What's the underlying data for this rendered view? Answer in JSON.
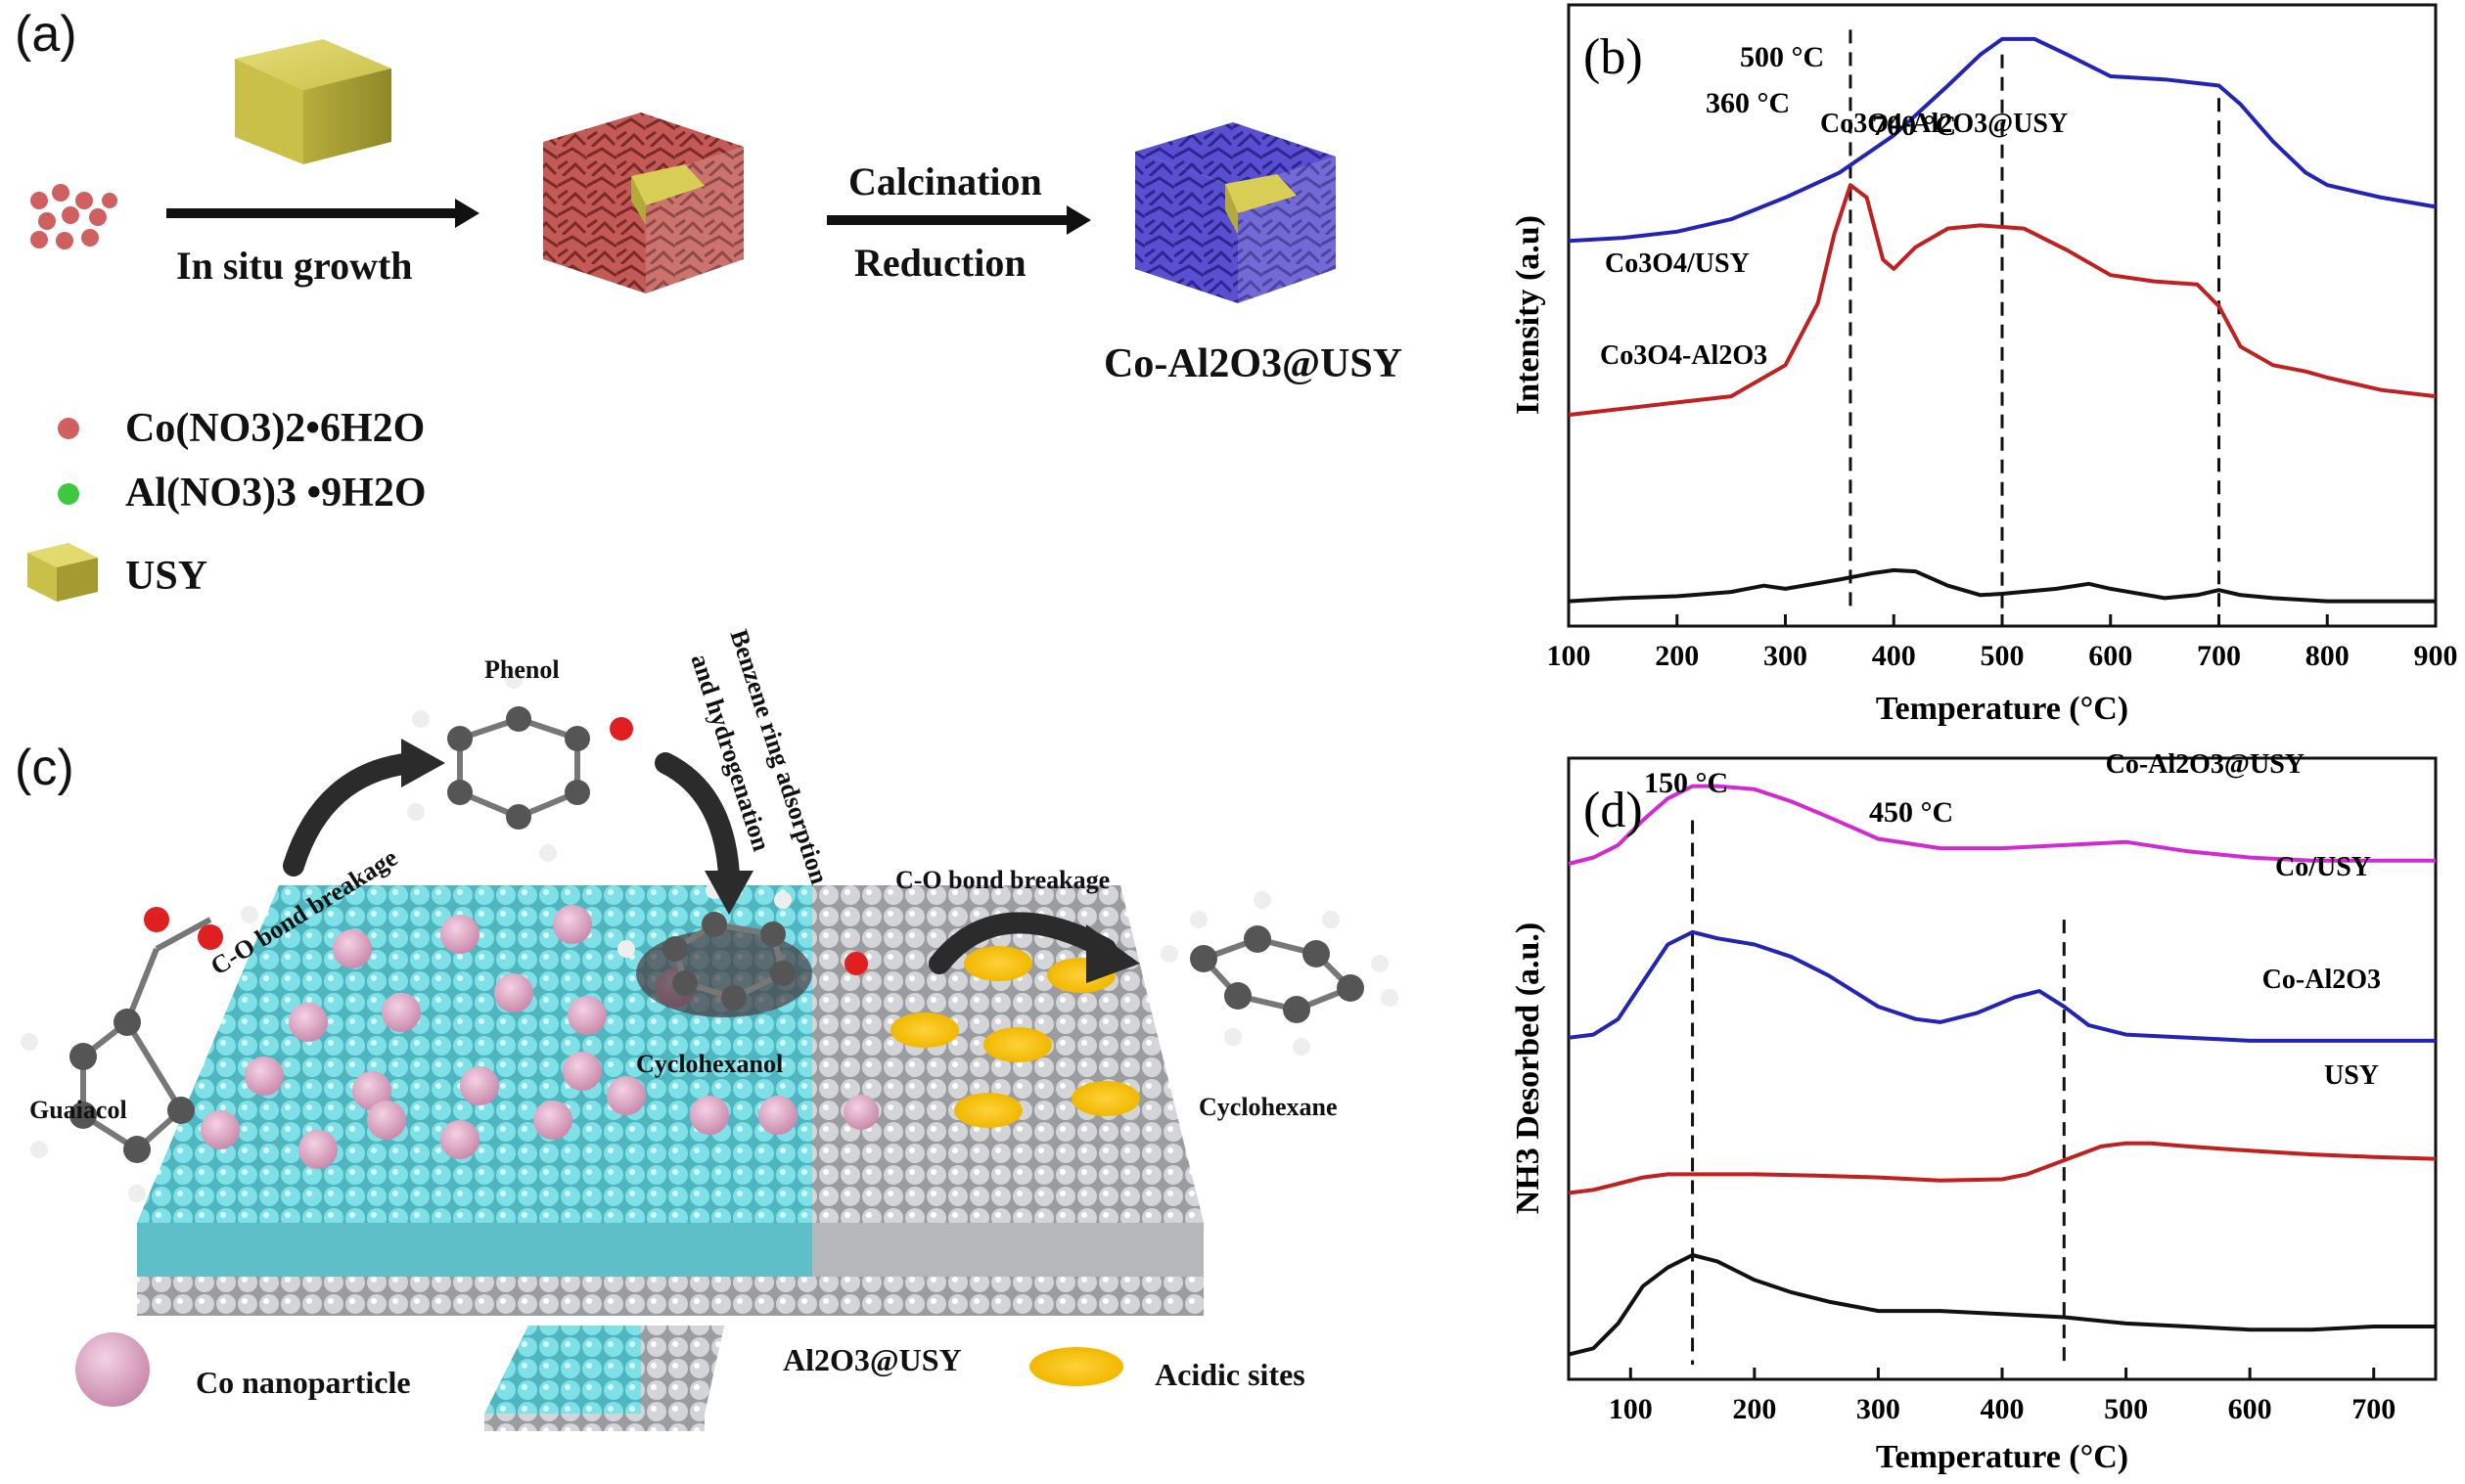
{
  "panel_a": {
    "label": "(a)",
    "arrow1_label": "In situ growth",
    "arrow2_top": "Calcination",
    "arrow2_bottom": "Reduction",
    "product_label": "Co-Al2O3@USY",
    "legend": [
      "Co(NO3)2•6H2O",
      "Al(NO3)3 •9H2O",
      "USY"
    ],
    "colors": {
      "co_precursor": "#d06060",
      "al_precursor": "#3ec83e",
      "usy": "#c9c04a",
      "co_shell": "#c0504d",
      "reduced_shell": "#5a4fd0"
    }
  },
  "panel_c": {
    "label": "(c)",
    "phenol": "Phenol",
    "co_break_left": "C-O bond breakage",
    "benzene_line1": "Benzene ring adsorption",
    "benzene_line2": "and hydrogenation",
    "co_break_right": "C-O bond breakage",
    "guaiacol": "Guaiacol",
    "cyclohexanol": "Cyclohexanol",
    "cyclohexane": "Cyclohexane",
    "legend_co": "Co nanoparticle",
    "legend_support": "Al2O3@USY",
    "legend_acid": "Acidic sites",
    "colors": {
      "al2o3": "#6fd3dc",
      "usy": "#c8cacc",
      "co": "#d99cbd",
      "acid": "#f4c21c"
    }
  },
  "chart_data": [
    {
      "panel": "(b)",
      "type": "line",
      "xlabel": "Temperature (°C)",
      "ylabel": "Intensity (a.u)",
      "xlim": [
        100,
        900
      ],
      "xticks": [
        100,
        200,
        300,
        400,
        500,
        600,
        700,
        800,
        900
      ],
      "y_ticks_shown": false,
      "annotations": [
        "360 °C",
        "500 °C",
        "700 °C"
      ],
      "vlines": [
        360,
        500,
        700
      ],
      "series": [
        {
          "name": "Co3O4-Al2O3@USY",
          "color": "#2323b5",
          "x": [
            100,
            150,
            200,
            250,
            300,
            350,
            400,
            450,
            480,
            500,
            530,
            560,
            600,
            650,
            700,
            720,
            750,
            780,
            800,
            850,
            900
          ],
          "y": [
            0.62,
            0.625,
            0.635,
            0.655,
            0.69,
            0.73,
            0.79,
            0.87,
            0.92,
            0.945,
            0.945,
            0.92,
            0.885,
            0.88,
            0.87,
            0.84,
            0.78,
            0.73,
            0.71,
            0.69,
            0.675
          ]
        },
        {
          "name": "Co3O4/USY",
          "color": "#c02020",
          "x": [
            100,
            150,
            200,
            250,
            300,
            330,
            345,
            360,
            375,
            390,
            400,
            420,
            450,
            480,
            520,
            560,
            600,
            640,
            680,
            700,
            720,
            750,
            780,
            800,
            850,
            900
          ],
          "y": [
            0.34,
            0.35,
            0.36,
            0.37,
            0.42,
            0.52,
            0.63,
            0.71,
            0.69,
            0.59,
            0.575,
            0.61,
            0.64,
            0.645,
            0.64,
            0.605,
            0.565,
            0.555,
            0.55,
            0.515,
            0.45,
            0.42,
            0.41,
            0.4,
            0.38,
            0.37
          ]
        },
        {
          "name": "Co3O4-Al2O3",
          "color": "#111111",
          "x": [
            100,
            150,
            200,
            250,
            280,
            300,
            350,
            380,
            400,
            420,
            450,
            480,
            500,
            550,
            580,
            600,
            650,
            680,
            700,
            720,
            750,
            800,
            850,
            900
          ],
          "y": [
            0.04,
            0.045,
            0.048,
            0.055,
            0.065,
            0.06,
            0.075,
            0.085,
            0.09,
            0.088,
            0.065,
            0.05,
            0.052,
            0.06,
            0.068,
            0.06,
            0.045,
            0.05,
            0.058,
            0.05,
            0.045,
            0.04,
            0.04,
            0.04
          ]
        }
      ]
    },
    {
      "panel": "(d)",
      "type": "line",
      "xlabel": "Temperature (°C)",
      "ylabel": "NH3 Desorbed (a.u.)",
      "xlim": [
        50,
        750
      ],
      "xticks": [
        100,
        200,
        300,
        400,
        500,
        600,
        700
      ],
      "y_ticks_shown": false,
      "annotations": [
        "150 °C",
        "450 °C"
      ],
      "vlines": [
        150,
        450
      ],
      "series": [
        {
          "name": "Co-Al2O3@USY",
          "color": "#d22ad2",
          "x": [
            50,
            70,
            90,
            110,
            130,
            150,
            170,
            200,
            230,
            260,
            300,
            350,
            400,
            450,
            500,
            550,
            600,
            650,
            700,
            750
          ],
          "y": [
            0.83,
            0.84,
            0.86,
            0.9,
            0.935,
            0.955,
            0.955,
            0.95,
            0.93,
            0.905,
            0.87,
            0.855,
            0.855,
            0.86,
            0.865,
            0.85,
            0.84,
            0.835,
            0.835,
            0.835
          ]
        },
        {
          "name": "Co/USY",
          "color": "#2323b5",
          "x": [
            50,
            70,
            90,
            110,
            130,
            150,
            170,
            200,
            230,
            260,
            300,
            330,
            350,
            380,
            410,
            430,
            450,
            470,
            500,
            550,
            600,
            650,
            700,
            750
          ],
          "y": [
            0.55,
            0.555,
            0.58,
            0.64,
            0.7,
            0.72,
            0.71,
            0.7,
            0.68,
            0.65,
            0.6,
            0.58,
            0.575,
            0.59,
            0.615,
            0.625,
            0.6,
            0.57,
            0.555,
            0.55,
            0.545,
            0.545,
            0.545,
            0.545
          ]
        },
        {
          "name": "Co-Al2O3",
          "color": "#c02020",
          "x": [
            50,
            70,
            90,
            110,
            130,
            150,
            200,
            250,
            300,
            350,
            400,
            420,
            440,
            460,
            480,
            500,
            520,
            550,
            600,
            650,
            700,
            750
          ],
          "y": [
            0.3,
            0.305,
            0.315,
            0.325,
            0.33,
            0.33,
            0.33,
            0.328,
            0.325,
            0.32,
            0.322,
            0.33,
            0.345,
            0.36,
            0.375,
            0.38,
            0.38,
            0.375,
            0.368,
            0.362,
            0.358,
            0.355
          ]
        },
        {
          "name": "USY",
          "color": "#111111",
          "x": [
            50,
            70,
            90,
            110,
            130,
            150,
            170,
            200,
            230,
            260,
            300,
            350,
            400,
            450,
            500,
            550,
            600,
            650,
            700,
            750
          ],
          "y": [
            0.04,
            0.05,
            0.09,
            0.15,
            0.18,
            0.2,
            0.19,
            0.16,
            0.14,
            0.125,
            0.11,
            0.11,
            0.105,
            0.1,
            0.09,
            0.085,
            0.08,
            0.08,
            0.085,
            0.085
          ]
        }
      ]
    }
  ]
}
